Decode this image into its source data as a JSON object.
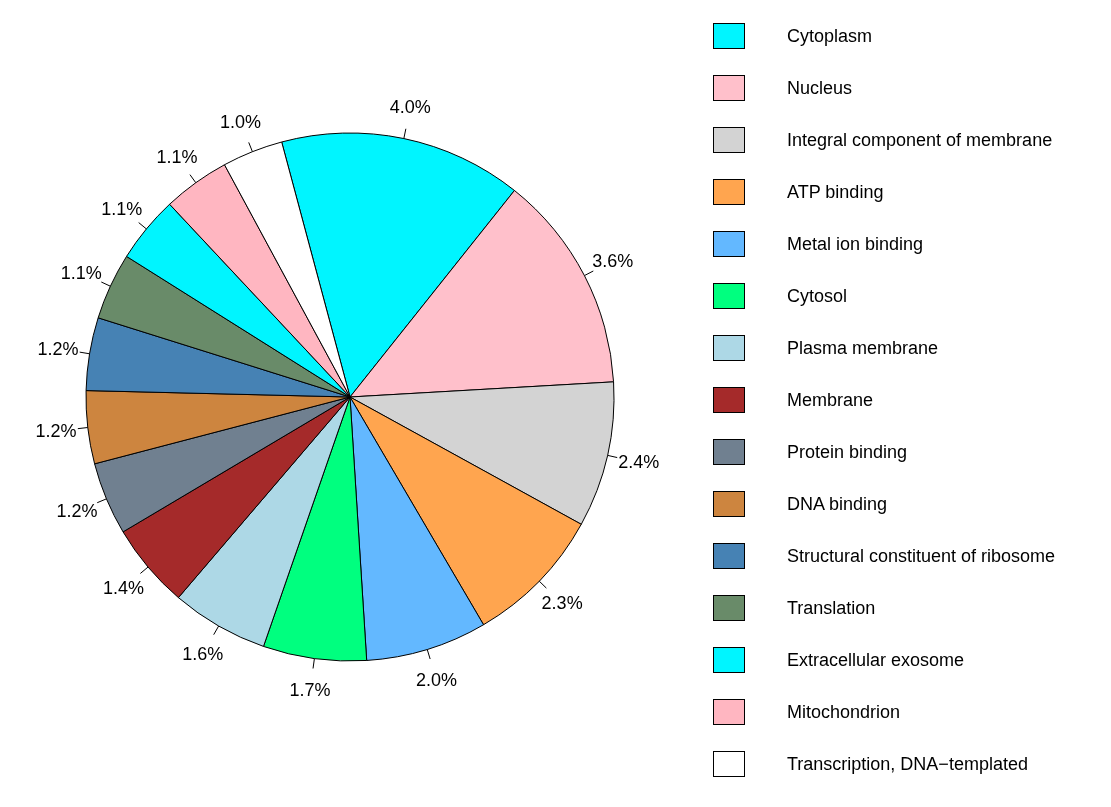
{
  "chart_data": {
    "type": "pie",
    "categories": [
      "Cytoplasm",
      "Nucleus",
      "Integral component of membrane",
      "ATP binding",
      "Metal ion binding",
      "Cytosol",
      "Plasma membrane",
      "Membrane",
      "Protein binding",
      "DNA binding",
      "Structural constituent of ribosome",
      "Translation",
      "Extracellular exosome",
      "Mitochondrion",
      "Transcription, DNA−templated"
    ],
    "values": [
      4.0,
      3.6,
      2.4,
      2.3,
      2.0,
      1.7,
      1.6,
      1.4,
      1.2,
      1.2,
      1.2,
      1.1,
      1.1,
      1.1,
      1.0
    ],
    "value_labels": [
      "4.0%",
      "3.6%",
      "2.4%",
      "2.3%",
      "2.0%",
      "1.7%",
      "1.6%",
      "1.4%",
      "1.2%",
      "1.2%",
      "1.2%",
      "1.1%",
      "1.1%",
      "1.1%",
      "1.0%"
    ],
    "colors": [
      "#00f5ff",
      "#ffc0cb",
      "#d3d3d3",
      "#ffa54f",
      "#63b8ff",
      "#00ff7f",
      "#add8e6",
      "#a52a2a",
      "#708090",
      "#cd853f",
      "#4682b4",
      "#698b69",
      "#00f5ff",
      "#ffb6c1",
      "#ffffff"
    ],
    "legend": "right"
  }
}
